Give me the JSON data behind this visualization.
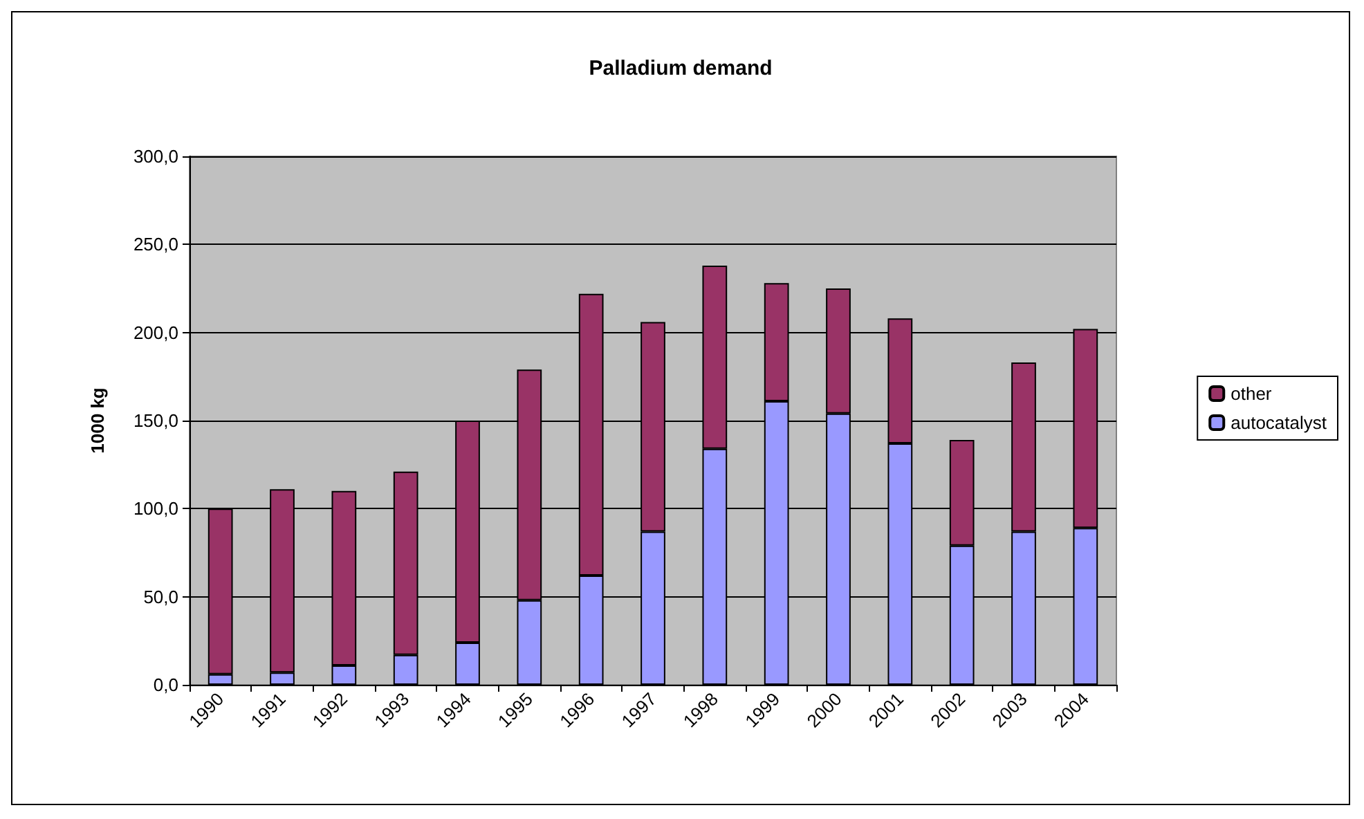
{
  "chart_data": {
    "type": "bar",
    "title": "Palladium demand",
    "ylabel": "1000 kg",
    "stacked": true,
    "categories": [
      "1990",
      "1991",
      "1992",
      "1993",
      "1994",
      "1995",
      "1996",
      "1997",
      "1998",
      "1999",
      "2000",
      "2001",
      "2002",
      "2003",
      "2004"
    ],
    "series": [
      {
        "name": "autocatalyst",
        "color": "#9999ff",
        "values": [
          6,
          7,
          11,
          17,
          24,
          48,
          62,
          87,
          134,
          161,
          154,
          137,
          79,
          87,
          89
        ]
      },
      {
        "name": "other",
        "color": "#993366",
        "values": [
          94,
          104,
          99,
          104,
          126,
          131,
          160,
          119,
          104,
          67,
          71,
          71,
          60,
          96,
          113
        ]
      }
    ],
    "ylim": [
      0,
      300
    ],
    "yticks": [
      {
        "value": 0,
        "label": "0,0"
      },
      {
        "value": 50,
        "label": "50,0"
      },
      {
        "value": 100,
        "label": "100,0"
      },
      {
        "value": 150,
        "label": "150,0"
      },
      {
        "value": 200,
        "label": "200,0"
      },
      {
        "value": 250,
        "label": "250,0"
      },
      {
        "value": 300,
        "label": "300,0"
      }
    ],
    "grid": "y",
    "legend": "right"
  }
}
